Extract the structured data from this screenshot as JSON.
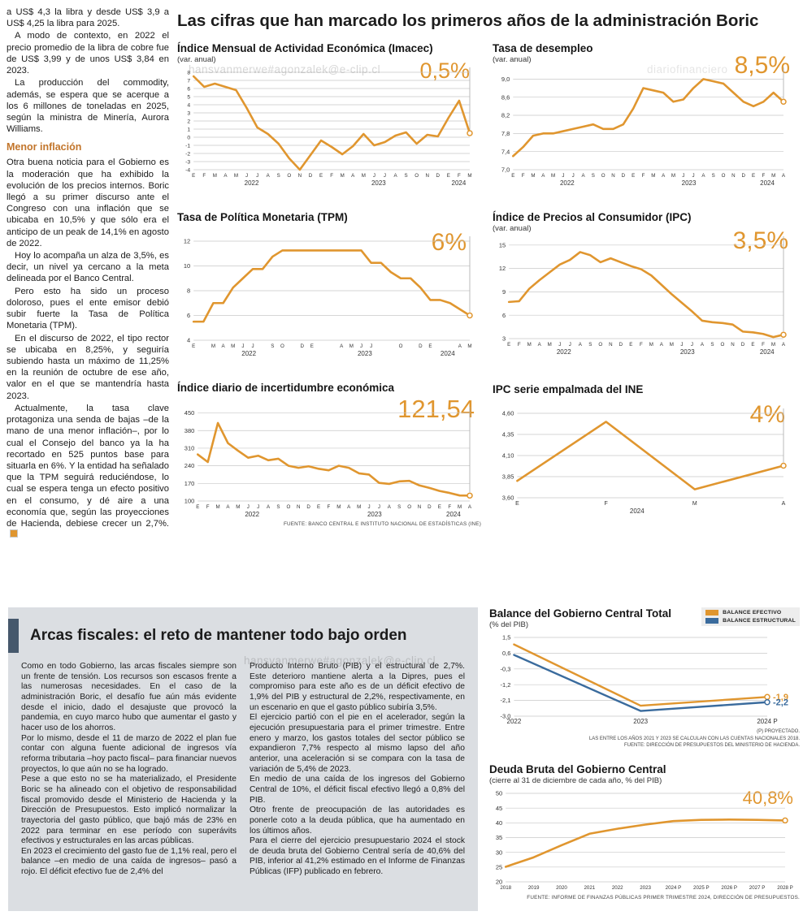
{
  "main_headline": "Las cifras que han marcado los primeros años de la administración Boric",
  "colors": {
    "accent_orange": "#e0962f",
    "accent_blue": "#3a6b9d",
    "box_gray": "#dbdee2",
    "accent_bar": "#46586c"
  },
  "watermarks": {
    "w1": "hansvanmerwe#agonzalek@e-clip.cl",
    "w2": "diariofinanciero",
    "w3": "hansvanmerwe#agonzalek@e-clip.cl"
  },
  "left_column": {
    "top_paragraphs": [
      "a US$ 4,3 la libra y desde US$ 3,9 a US$ 4,25 la libra para 2025.",
      "A modo de contexto, en 2022 el precio promedio de la libra de cobre fue de US$ 3,99 y de unos US$ 3,84 en 2023.",
      "La producción del commodity, además, se espera que se acerque a los 6 millones de toneladas en 2025, según la ministra de Minería, Aurora Williams."
    ],
    "subhead": "Menor inflación",
    "bottom_paragraphs": [
      "Otra buena noticia para el Gobierno es la moderación que ha exhibido la evolución de los precios internos. Boric llegó a su primer discurso ante el Congreso con una inflación que se ubicaba en 10,5% y que sólo era el anticipo de un peak de 14,1% en agosto de 2022.",
      "Hoy lo acompaña un alza de 3,5%, es decir, un nivel ya cercano a la meta delineada por el Banco Central.",
      "Pero esto ha sido un proceso doloroso, pues el ente emisor debió subir fuerte la Tasa de Política Monetaria (TPM).",
      "En el discurso de 2022, el tipo rector se ubicaba en 8,25%, y seguiría subiendo hasta un máximo de 11,25% en la reunión de octubre de ese año, valor en el que se mantendría hasta 2023.",
      "Actualmente, la tasa clave protagoniza una senda de bajas –de la mano de una menor inflación–, por lo cual el Consejo del banco ya la ha recortado en 525 puntos base para situarla en 6%. Y la entidad ha señalado que la TPM seguirá reduciéndose, lo cual se espera tenga un efecto positivo en el consumo, y dé aire a una economía que, según las proyecciones de Hacienda, debiese crecer un 2,7%."
    ]
  },
  "arcas_box": {
    "headline": "Arcas fiscales: el reto de mantener todo bajo orden",
    "col1": [
      "Como en todo Gobierno, las arcas fiscales siempre son un frente de tensión. Los recursos son escasos frente a las numerosas necesidades. En el caso de la administración Boric, el desafío fue aún más evidente desde el inicio, dado el desajuste que provocó la pandemia, en cuyo marco hubo que aumentar el gasto y hacer uso de los ahorros.",
      "Por lo mismo, desde el 11 de marzo de 2022 el plan fue contar con alguna fuente adicional de ingresos vía reforma tributaria –hoy pacto fiscal– para financiar nuevos proyectos, lo que aún no se ha logrado.",
      "Pese a que esto no se ha materializado, el Presidente Boric se ha alineado con el objetivo de responsabilidad fiscal promovido desde el Ministerio de Hacienda y la Dirección de Presupuestos. Esto implicó normalizar la trayectoria del gasto público, que bajó más de 23% en 2022 para terminar en ese período con superávits efectivos y estructurales en las arcas públicas.",
      "En 2023 el crecimiento del gasto fue de 1,1% real, pero el balance –en medio de una caída de ingresos– pasó a rojo. El déficit efectivo fue de 2,4% del"
    ],
    "col2": [
      "Producto Interno Bruto (PIB) y el estructural de 2,7%. Este deterioro mantiene alerta a la Dipres, pues el compromiso para este año es de un déficit efectivo de 1,9% del PIB y estructural de 2,2%, respectivamente, en un escenario en que el gasto público subiría 3,5%.",
      "El ejercicio partió con el pie en el acelerador, según la ejecución presupuestaria para el primer trimestre. Entre enero y marzo, los gastos totales del sector público se expandieron 7,7% respecto al mismo lapso del año anterior, una aceleración si se compara con la tasa de variación de 5,4% de 2023.",
      "En medio de una caída de los ingresos del Gobierno Central de 10%, el déficit fiscal efectivo llegó a 0,8% del PIB.",
      "Otro frente de preocupación de las autoridades es ponerle coto a la deuda pública, que ha aumentado en los últimos años.",
      "Para el cierre del ejercicio presupuestario 2024 el stock de deuda bruta del Gobierno Central sería de 40,6% del PIB, inferior al 41,2% estimado en el Informe de Finanzas Públicas (IFP) publicado en febrero."
    ]
  },
  "chart_data": [
    {
      "id": "imacec",
      "type": "line",
      "title": "Índice Mensual de Actividad Económica (Imacec)",
      "subtitle": "(var. anual)",
      "big_value": "0,5%",
      "ylim": [
        -4,
        8
      ],
      "yticks": [
        8,
        7,
        6,
        5,
        4,
        3,
        2,
        1,
        0,
        -1,
        -2,
        -3,
        -4
      ],
      "x_labels": [
        "E",
        "F",
        "M",
        "A",
        "M",
        "J",
        "J",
        "A",
        "S",
        "O",
        "N",
        "D",
        "E",
        "F",
        "M",
        "A",
        "M",
        "J",
        "J",
        "A",
        "S",
        "O",
        "N",
        "D",
        "E",
        "F",
        "M"
      ],
      "years": [
        {
          "label": "2022",
          "f": 0.21
        },
        {
          "label": "2023",
          "f": 0.67
        },
        {
          "label": "2024",
          "f": 0.96
        }
      ],
      "end_line": true,
      "end_marker": true,
      "series": [
        {
          "name": "Imacec",
          "color": "#e0962f",
          "values": [
            7.5,
            6.2,
            6.6,
            6.2,
            5.8,
            3.6,
            1.2,
            0.4,
            -0.8,
            -2.6,
            -4.0,
            -2.2,
            -0.4,
            -1.2,
            -2.1,
            -1.1,
            0.4,
            -1.0,
            -0.6,
            0.2,
            0.6,
            -0.8,
            0.3,
            0.1,
            2.4,
            4.5,
            0.5
          ]
        }
      ]
    },
    {
      "id": "desempleo",
      "type": "line",
      "title": "Tasa de desempleo",
      "subtitle": "(var. anual)",
      "big_value": "8,5%",
      "ylim": [
        7.0,
        9.15
      ],
      "yticks": [
        9.0,
        8.6,
        8.2,
        7.8,
        7.4,
        7.0
      ],
      "ytick_labels": [
        "9,0",
        "8,6",
        "8,2",
        "7,8",
        "7,4",
        "7,0"
      ],
      "x_labels": [
        "E",
        "F",
        "M",
        "A",
        "M",
        "J",
        "J",
        "A",
        "S",
        "O",
        "N",
        "D",
        "E",
        "F",
        "M",
        "A",
        "M",
        "J",
        "J",
        "A",
        "S",
        "O",
        "N",
        "D",
        "E",
        "F",
        "M",
        "A"
      ],
      "years": [
        {
          "label": "2022",
          "f": 0.2
        },
        {
          "label": "2023",
          "f": 0.65
        },
        {
          "label": "2024",
          "f": 0.94
        }
      ],
      "end_line": true,
      "end_marker": true,
      "series": [
        {
          "name": "Tasa de desempleo",
          "color": "#e0962f",
          "values": [
            7.3,
            7.5,
            7.75,
            7.8,
            7.8,
            7.85,
            7.9,
            7.95,
            8.0,
            7.9,
            7.9,
            8.0,
            8.35,
            8.8,
            8.75,
            8.7,
            8.5,
            8.55,
            8.8,
            9.0,
            8.95,
            8.9,
            8.7,
            8.5,
            8.4,
            8.5,
            8.7,
            8.5
          ]
        }
      ]
    },
    {
      "id": "tpm",
      "type": "line",
      "title": "Tasa de Política Monetaria (TPM)",
      "subtitle": "",
      "big_value": "6%",
      "ylim": [
        4,
        12
      ],
      "yticks": [
        12,
        10,
        8,
        6,
        4
      ],
      "x_labels": [
        "E",
        "",
        "M",
        "A",
        "M",
        "J",
        "J",
        "",
        "S",
        "O",
        "",
        "D",
        "E",
        "",
        "",
        "A",
        "M",
        "J",
        "J",
        "",
        "",
        "O",
        "",
        "D",
        "E",
        "",
        "",
        "A",
        "M"
      ],
      "years": [
        {
          "label": "2022",
          "f": 0.2
        },
        {
          "label": "2023",
          "f": 0.62
        },
        {
          "label": "2024",
          "f": 0.92
        }
      ],
      "end_line": true,
      "end_marker": true,
      "series": [
        {
          "name": "TPM",
          "color": "#e0962f",
          "values": [
            5.5,
            5.5,
            7.0,
            7.0,
            8.25,
            9.0,
            9.75,
            9.75,
            10.75,
            11.25,
            11.25,
            11.25,
            11.25,
            11.25,
            11.25,
            11.25,
            11.25,
            11.25,
            10.25,
            10.25,
            9.5,
            9.0,
            9.0,
            8.25,
            7.25,
            7.25,
            7.0,
            6.5,
            6.0
          ]
        }
      ]
    },
    {
      "id": "ipc",
      "type": "line",
      "title": "Índice de Precios al Consumidor (IPC)",
      "subtitle": "(var. anual)",
      "big_value": "3,5%",
      "ylim": [
        3,
        15.5
      ],
      "yticks": [
        15,
        12,
        9,
        6,
        3
      ],
      "x_labels": [
        "E",
        "F",
        "M",
        "A",
        "M",
        "J",
        "J",
        "A",
        "S",
        "O",
        "N",
        "D",
        "E",
        "F",
        "M",
        "A",
        "M",
        "J",
        "J",
        "A",
        "S",
        "O",
        "N",
        "D",
        "E",
        "F",
        "M",
        "A"
      ],
      "years": [
        {
          "label": "2022",
          "f": 0.2
        },
        {
          "label": "2023",
          "f": 0.65
        },
        {
          "label": "2024",
          "f": 0.94
        }
      ],
      "end_line": true,
      "end_marker": true,
      "series": [
        {
          "name": "IPC",
          "color": "#e0962f",
          "values": [
            7.7,
            7.8,
            9.4,
            10.5,
            11.5,
            12.5,
            13.1,
            14.1,
            13.7,
            12.8,
            13.3,
            12.8,
            12.3,
            11.9,
            11.1,
            9.9,
            8.7,
            7.6,
            6.5,
            5.3,
            5.1,
            5.0,
            4.8,
            3.9,
            3.8,
            3.6,
            3.2,
            3.5
          ]
        }
      ]
    },
    {
      "id": "incertidumbre",
      "type": "line",
      "title": "Índice diario de incertidumbre económica",
      "subtitle": "",
      "big_value": "121,54",
      "ylim": [
        100,
        455
      ],
      "yticks": [
        450,
        380,
        310,
        240,
        170,
        100
      ],
      "x_labels": [
        "E",
        "F",
        "M",
        "A",
        "M",
        "J",
        "J",
        "A",
        "S",
        "O",
        "N",
        "D",
        "E",
        "F",
        "M",
        "A",
        "M",
        "J",
        "J",
        "A",
        "S",
        "O",
        "N",
        "D",
        "E",
        "F",
        "M",
        "A"
      ],
      "years": [
        {
          "label": "2022",
          "f": 0.2
        },
        {
          "label": "2023",
          "f": 0.65
        },
        {
          "label": "2024",
          "f": 0.94
        }
      ],
      "end_line": true,
      "end_marker": true,
      "source": "FUENTE: BANCO CENTRAL E INSTITUTO NACIONAL DE ESTADÍSTICAS (INE)",
      "series": [
        {
          "name": "Incertidumbre económica",
          "color": "#e0962f",
          "values": [
            285,
            255,
            410,
            330,
            300,
            272,
            280,
            262,
            268,
            240,
            232,
            238,
            228,
            222,
            240,
            232,
            210,
            205,
            172,
            168,
            178,
            180,
            162,
            152,
            140,
            132,
            122,
            121.54
          ]
        }
      ]
    },
    {
      "id": "ipc_empalmada",
      "type": "line",
      "title": "IPC serie empalmada del INE",
      "subtitle": "",
      "big_value": "4%",
      "ylim": [
        3.6,
        4.6
      ],
      "yticks": [
        4.6,
        4.35,
        4.1,
        3.85,
        3.6
      ],
      "ytick_labels": [
        "4,60",
        "4,35",
        "4,10",
        "3,85",
        "3,60"
      ],
      "x_labels": [
        "E",
        "F",
        "M",
        "A"
      ],
      "xfs": 7,
      "years": [
        {
          "label": "2024",
          "f": 0.45
        }
      ],
      "end_line": true,
      "end_marker": true,
      "series": [
        {
          "name": "IPC serie empalmada",
          "color": "#e0962f",
          "values": [
            3.8,
            4.5,
            3.7,
            3.98
          ]
        }
      ]
    },
    {
      "id": "balance",
      "type": "line",
      "title": "Balance del Gobierno Central Total",
      "subtitle": "(% del PIB)",
      "big_value": "",
      "ylim": [
        -3.0,
        1.5
      ],
      "yticks": [
        1.5,
        0.6,
        -0.3,
        -1.2,
        -2.1,
        -3.0
      ],
      "ytick_labels": [
        "1,5",
        "0,6",
        "-0,3",
        "-1,2",
        "-2,1",
        "-3,0"
      ],
      "x_labels": [
        "2022",
        "2023",
        "2024 P"
      ],
      "xfs": 8,
      "lw": 2.4,
      "end_line": false,
      "end_marker": true,
      "legend_position": "top-right",
      "footnotes": [
        "(P) PROYECTADO.",
        "LAS ENTRE LOS AÑOS 2021 Y 2023 SE CALCULAN CON LAS CUENTAS NACIONALES 2018.",
        "FUENTE: DIRECCIÓN DE PRESUPUESTOS DEL MINISTERIO DE HACIENDA."
      ],
      "series": [
        {
          "name": "BALANCE EFECTIVO",
          "color": "#e0962f",
          "values": [
            1.1,
            -2.4,
            -1.9
          ],
          "end_label": "-1,9"
        },
        {
          "name": "BALANCE ESTRUCTURAL",
          "color": "#3a6b9d",
          "values": [
            0.5,
            -2.7,
            -2.2
          ],
          "end_label": "-2,2"
        }
      ]
    },
    {
      "id": "deuda",
      "type": "line",
      "title": "Deuda Bruta del Gobierno Central",
      "subtitle": "(cierre al 31 de diciembre de cada año, % del PIB)",
      "big_value": "40,8%",
      "ylim": [
        20,
        50
      ],
      "yticks": [
        50,
        45,
        40,
        35,
        30,
        25,
        20
      ],
      "x_labels": [
        "2018",
        "2019",
        "2020",
        "2021",
        "2022",
        "2023",
        "2024 P",
        "2025 P",
        "2026 P",
        "2027 P",
        "2028 P"
      ],
      "xfs": 6.2,
      "mr": 18,
      "end_line": false,
      "end_marker": true,
      "source": "FUENTE: INFORME DE FINANZAS PÚBLICAS PRIMER TRIMESTRE 2024, DIRECCIÓN DE PRESUPUESTOS.",
      "series": [
        {
          "name": "Deuda bruta",
          "color": "#e0962f",
          "values": [
            25.1,
            28.3,
            32.4,
            36.3,
            38.0,
            39.4,
            40.6,
            41.0,
            41.1,
            41.0,
            40.8
          ]
        }
      ]
    }
  ]
}
